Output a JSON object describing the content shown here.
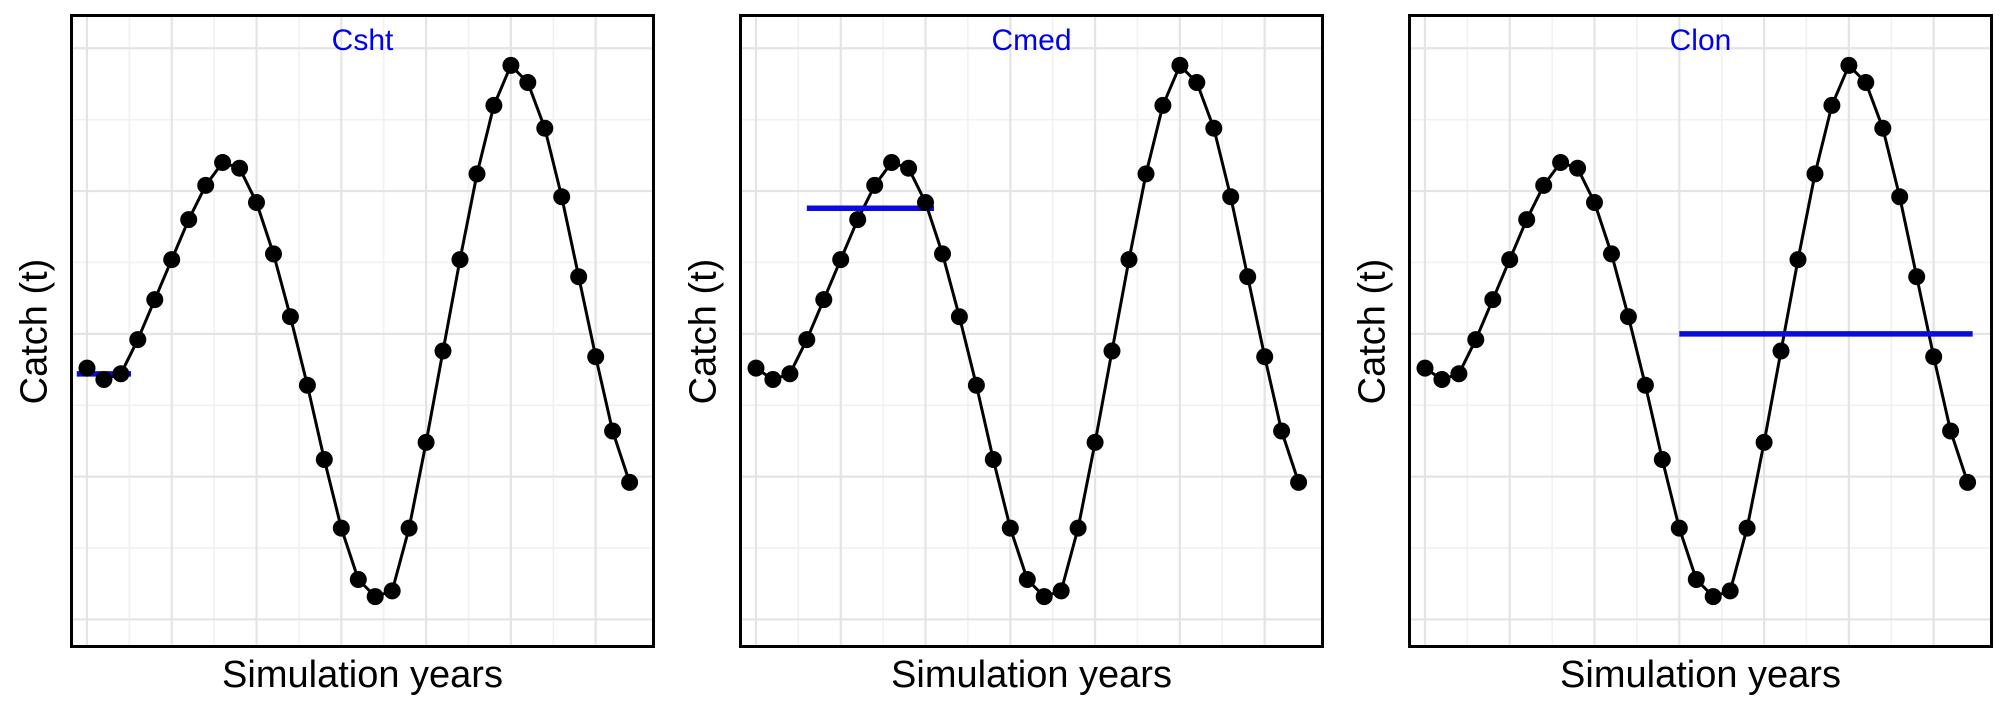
{
  "figure": {
    "background": "#ffffff"
  },
  "chart_data": {
    "type": "line",
    "title": "",
    "xlabel": "Simulation years",
    "ylabel": "Catch (t)",
    "x_range": [
      -1,
      33.5
    ],
    "y_range": [
      -0.05,
      1.06
    ],
    "grid": {
      "x_major": [
        0,
        5,
        10,
        15,
        20,
        25,
        30
      ],
      "y_major": [
        0,
        0.25,
        0.5,
        0.75,
        1.0
      ],
      "visible": true
    },
    "legend": "none",
    "series": {
      "name": "catch",
      "x": [
        0,
        1,
        2,
        3,
        4,
        5,
        6,
        7,
        8,
        9,
        10,
        11,
        12,
        13,
        14,
        15,
        16,
        17,
        18,
        19,
        20,
        21,
        22,
        23,
        24,
        25,
        26,
        27,
        28,
        29,
        30,
        31,
        32
      ],
      "y": [
        0.44,
        0.42,
        0.43,
        0.49,
        0.56,
        0.63,
        0.7,
        0.76,
        0.8,
        0.79,
        0.73,
        0.64,
        0.53,
        0.41,
        0.28,
        0.16,
        0.07,
        0.04,
        0.05,
        0.16,
        0.31,
        0.47,
        0.63,
        0.78,
        0.9,
        0.97,
        0.94,
        0.86,
        0.74,
        0.6,
        0.46,
        0.33,
        0.24
      ]
    },
    "panels": [
      {
        "title": "Csht",
        "ref_line": {
          "x0": -0.6,
          "x1": 2.6,
          "y": 0.43
        }
      },
      {
        "title": "Cmed",
        "ref_line": {
          "x0": 3.0,
          "x1": 10.5,
          "y": 0.72
        }
      },
      {
        "title": "Clon",
        "ref_line": {
          "x0": 15.0,
          "x1": 32.3,
          "y": 0.5
        }
      }
    ],
    "colors": {
      "line": "#000000",
      "point": "#000000",
      "reference": "#0b0bdd",
      "title": "#0000ee",
      "grid_major": "#e4e4e4",
      "grid_minor": "#f1f1f1",
      "border": "#000000",
      "plot_background": "#ffffff"
    },
    "point_radius": 8.5,
    "line_width": 3
  }
}
